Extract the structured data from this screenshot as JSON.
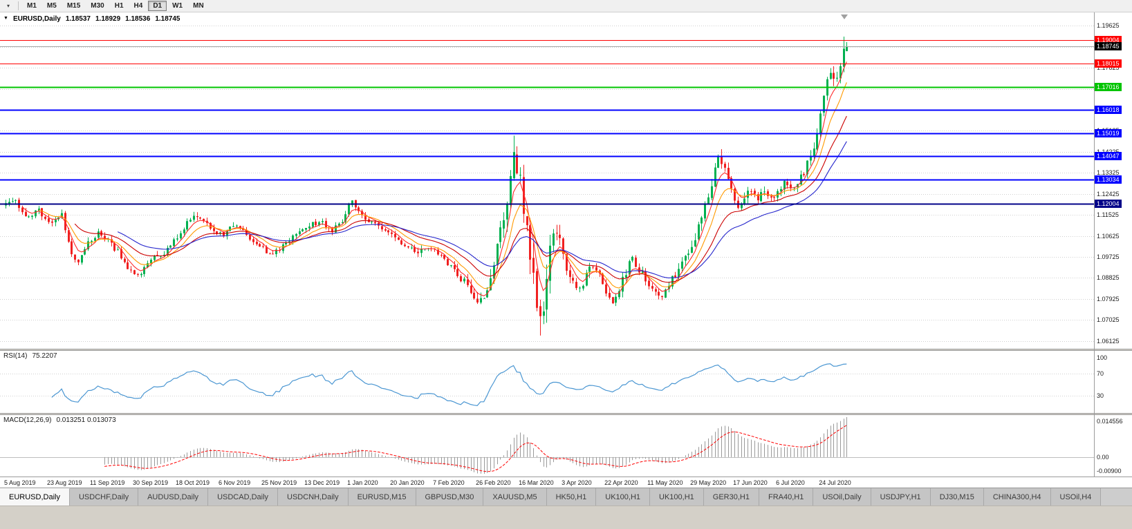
{
  "toolbar": {
    "dropdown_icon": "▾",
    "timeframes": [
      "M1",
      "M5",
      "M15",
      "M30",
      "H1",
      "H4",
      "D1",
      "W1",
      "MN"
    ],
    "active_timeframe": "D1"
  },
  "chart_info": {
    "collapse_icon": "▼",
    "symbol": "EURUSD,Daily",
    "open": "1.18537",
    "high": "1.18929",
    "low": "1.18536",
    "close": "1.18745"
  },
  "price_axis": {
    "grid_labels": [
      "1.19625",
      "1.18725",
      "1.17825",
      "1.16925",
      "1.16025",
      "1.15125",
      "1.14225",
      "1.13325",
      "1.12425",
      "1.11525",
      "1.10625",
      "1.09725",
      "1.08825",
      "1.07925",
      "1.07025",
      "1.06125"
    ]
  },
  "horizontal_lines": [
    {
      "price": 1.19004,
      "label": "1.19004",
      "color": "#ff0000",
      "width": 1
    },
    {
      "price": 1.18015,
      "label": "1.18015",
      "color": "#ff0000",
      "width": 1
    },
    {
      "price": 1.17016,
      "label": "1.17016",
      "color": "#00c400",
      "width": 2
    },
    {
      "price": 1.16018,
      "label": "1.16018",
      "color": "#0000ff",
      "width": 2
    },
    {
      "price": 1.15019,
      "label": "1.15019",
      "color": "#0000ff",
      "width": 2
    },
    {
      "price": 1.14047,
      "label": "1.14047",
      "color": "#0000ff",
      "width": 2
    },
    {
      "price": 1.13034,
      "label": "1.13034",
      "color": "#0000ff",
      "width": 2
    },
    {
      "price": 1.12004,
      "label": "1.12004",
      "color": "#000088",
      "width": 2
    }
  ],
  "current_price": {
    "value": 1.18745,
    "label": "1.18745",
    "badge_color": "#000000",
    "line_color": "#a6a6a6"
  },
  "date_axis": [
    "5 Aug 2019",
    "23 Aug 2019",
    "11 Sep 2019",
    "30 Sep 2019",
    "18 Oct 2019",
    "6 Nov 2019",
    "25 Nov 2019",
    "13 Dec 2019",
    "1 Jan 2020",
    "20 Jan 2020",
    "7 Feb 2020",
    "26 Feb 2020",
    "16 Mar 2020",
    "3 Apr 2020",
    "22 Apr 2020",
    "11 May 2020",
    "29 May 2020",
    "17 Jun 2020",
    "6 Jul 2020",
    "24 Jul 2020"
  ],
  "rsi_panel": {
    "name": "RSI(14)",
    "value": "75.2207",
    "axis_labels": [
      "100",
      "70",
      "30"
    ],
    "axis_values": [
      100,
      70,
      30
    ],
    "levels": [
      70,
      30
    ],
    "line_color": "#4a96d2"
  },
  "macd_panel": {
    "name": "MACD(12,26,9)",
    "values": "0.013251 0.013073",
    "axis_top": "0.014556",
    "axis_zero": "0.00",
    "axis_bottom": "-0.00900",
    "histogram_color": "#999999",
    "signal_color": "#ff0000"
  },
  "tabs": [
    "EURUSD,Daily",
    "USDCHF,Daily",
    "AUDUSD,Daily",
    "USDCAD,Daily",
    "USDCNH,Daily",
    "EURUSD,M15",
    "GBPUSD,M30",
    "XAUUSD,M5",
    "HK50,H1",
    "UK100,H1",
    "UK100,H1",
    "GER30,H1",
    "FRA40,H1",
    "USOil,Daily",
    "USDJPY,H1",
    "DJ30,M15",
    "CHINA300,H4",
    "USOil,H4"
  ],
  "active_tab": "EURUSD,Daily",
  "chart_data": {
    "type": "candlestick",
    "symbol": "EURUSD",
    "timeframe": "Daily",
    "bars_count": 256,
    "bars_per_label": 13,
    "price_range": [
      1.06,
      1.199
    ],
    "candle_up_color": "#00b050",
    "candle_down_color": "#f02020",
    "close_anchors": [
      [
        0,
        1.1195
      ],
      [
        3,
        1.1215
      ],
      [
        6,
        1.114
      ],
      [
        10,
        1.117
      ],
      [
        14,
        1.1115
      ],
      [
        17,
        1.115
      ],
      [
        20,
        1.099
      ],
      [
        22,
        1.094
      ],
      [
        25,
        1.103
      ],
      [
        28,
        1.1075
      ],
      [
        31,
        1.104
      ],
      [
        34,
        1.0995
      ],
      [
        37,
        1.093
      ],
      [
        40,
        1.089
      ],
      [
        42,
        1.093
      ],
      [
        45,
        1.099
      ],
      [
        48,
        1.098
      ],
      [
        51,
        1.104
      ],
      [
        54,
        1.11
      ],
      [
        57,
        1.115
      ],
      [
        60,
        1.113
      ],
      [
        63,
        1.108
      ],
      [
        66,
        1.107
      ],
      [
        69,
        1.1105
      ],
      [
        72,
        1.108
      ],
      [
        75,
        1.1035
      ],
      [
        78,
        1.1005
      ],
      [
        81,
        1.0985
      ],
      [
        84,
        1.102
      ],
      [
        87,
        1.106
      ],
      [
        90,
        1.1085
      ],
      [
        93,
        1.1115
      ],
      [
        96,
        1.112
      ],
      [
        99,
        1.1085
      ],
      [
        102,
        1.113
      ],
      [
        105,
        1.122
      ],
      [
        107,
        1.116
      ],
      [
        110,
        1.113
      ],
      [
        113,
        1.1105
      ],
      [
        116,
        1.1085
      ],
      [
        119,
        1.104
      ],
      [
        122,
        1.1015
      ],
      [
        125,
        1.1
      ],
      [
        128,
        1.102
      ],
      [
        131,
        1.098
      ],
      [
        134,
        1.0945
      ],
      [
        137,
        1.09
      ],
      [
        140,
        1.0845
      ],
      [
        143,
        1.079
      ],
      [
        145,
        1.081
      ],
      [
        147,
        1.089
      ],
      [
        149,
        1.1
      ],
      [
        151,
        1.113
      ],
      [
        153,
        1.133
      ],
      [
        154,
        1.144
      ],
      [
        155,
        1.136
      ],
      [
        156,
        1.128
      ],
      [
        157,
        1.118
      ],
      [
        158,
        1.108
      ],
      [
        159,
        1.099
      ],
      [
        160,
        1.086
      ],
      [
        161,
        1.071
      ],
      [
        162,
        1.068
      ],
      [
        163,
        1.077
      ],
      [
        164,
        1.089
      ],
      [
        165,
        1.101
      ],
      [
        166,
        1.106
      ],
      [
        167,
        1.109
      ],
      [
        168,
        1.103
      ],
      [
        169,
        1.096
      ],
      [
        170,
        1.093
      ],
      [
        172,
        1.087
      ],
      [
        174,
        1.083
      ],
      [
        176,
        1.09
      ],
      [
        178,
        1.0945
      ],
      [
        180,
        1.089
      ],
      [
        182,
        1.083
      ],
      [
        184,
        1.0785
      ],
      [
        186,
        1.084
      ],
      [
        188,
        1.091
      ],
      [
        190,
        1.0965
      ],
      [
        192,
        1.092
      ],
      [
        194,
        1.0875
      ],
      [
        196,
        1.0825
      ],
      [
        198,
        1.0795
      ],
      [
        200,
        1.082
      ],
      [
        202,
        1.088
      ],
      [
        204,
        1.092
      ],
      [
        206,
        1.0965
      ],
      [
        208,
        1.101
      ],
      [
        210,
        1.11
      ],
      [
        212,
        1.118
      ],
      [
        214,
        1.129
      ],
      [
        216,
        1.139
      ],
      [
        218,
        1.135
      ],
      [
        220,
        1.125
      ],
      [
        222,
        1.119
      ],
      [
        224,
        1.123
      ],
      [
        226,
        1.126
      ],
      [
        228,
        1.123
      ],
      [
        230,
        1.125
      ],
      [
        232,
        1.1215
      ],
      [
        234,
        1.125
      ],
      [
        236,
        1.129
      ],
      [
        238,
        1.126
      ],
      [
        240,
        1.13
      ],
      [
        242,
        1.134
      ],
      [
        244,
        1.14
      ],
      [
        246,
        1.15
      ],
      [
        248,
        1.165
      ],
      [
        250,
        1.178
      ],
      [
        251,
        1.174
      ],
      [
        252,
        1.172
      ],
      [
        253,
        1.178
      ],
      [
        254,
        1.185
      ],
      [
        255,
        1.18745
      ]
    ],
    "volatility_anchors": [
      [
        0,
        0.002
      ],
      [
        40,
        0.0022
      ],
      [
        100,
        0.0018
      ],
      [
        130,
        0.0022
      ],
      [
        143,
        0.0035
      ],
      [
        150,
        0.0065
      ],
      [
        156,
        0.009
      ],
      [
        163,
        0.008
      ],
      [
        168,
        0.005
      ],
      [
        175,
        0.0035
      ],
      [
        200,
        0.0028
      ],
      [
        210,
        0.004
      ],
      [
        220,
        0.0038
      ],
      [
        232,
        0.0024
      ],
      [
        244,
        0.0034
      ],
      [
        252,
        0.004
      ],
      [
        255,
        0.0028
      ]
    ],
    "spike_high": {
      "index": 154,
      "price": 1.1492
    },
    "crash_low": {
      "index": 162,
      "price": 1.0636
    },
    "prior_bar_high": 1.1916,
    "last_bar": {
      "open": 1.18537,
      "high": 1.18929,
      "low": 1.18536,
      "close": 1.18745
    },
    "moving_averages": [
      {
        "period": 5,
        "color": "#ff2a2a"
      },
      {
        "period": 10,
        "color": "#ff9900"
      },
      {
        "period": 21,
        "color": "#cc0000"
      },
      {
        "period": 34,
        "color": "#2525cc"
      }
    ],
    "indicators": {
      "rsi": {
        "period": 14,
        "value": 75.2207
      },
      "macd": {
        "fast": 12,
        "slow": 26,
        "signal": 9,
        "values": [
          0.013251,
          0.013073
        ]
      }
    }
  }
}
